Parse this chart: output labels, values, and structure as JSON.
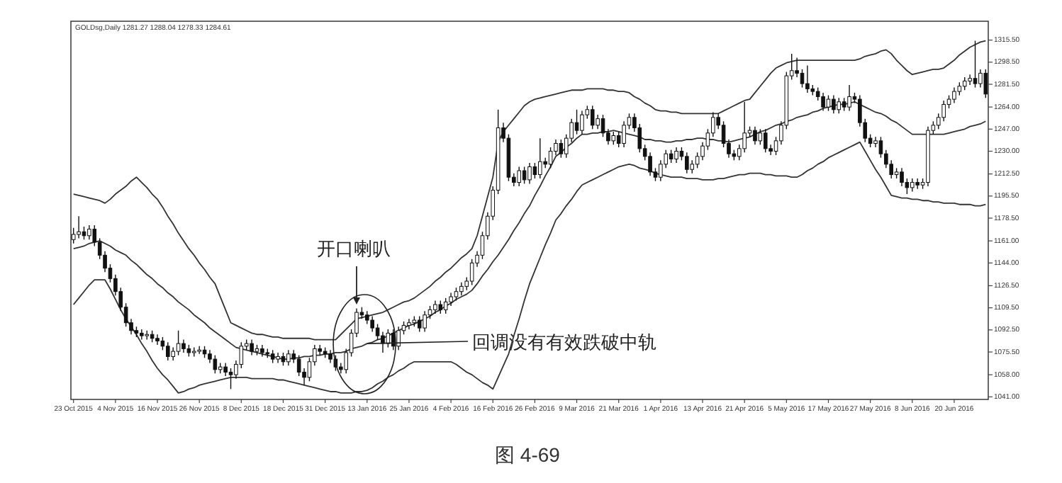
{
  "chart_data": {
    "type": "candlestick",
    "title": "GOLDsg,Daily 1281.27 1288.04 1278.33 1284.61",
    "categories": [
      "23 Oct 2015",
      null,
      null,
      null,
      null,
      null,
      null,
      null,
      "4 Nov 2015",
      null,
      null,
      null,
      null,
      null,
      null,
      null,
      "16 Nov 2015",
      null,
      null,
      null,
      null,
      null,
      null,
      null,
      "26 Nov 2015",
      null,
      null,
      null,
      null,
      null,
      null,
      null,
      "8 Dec 2015",
      null,
      null,
      null,
      null,
      null,
      null,
      null,
      "18 Dec 2015",
      null,
      null,
      null,
      null,
      null,
      null,
      null,
      "31 Dec 2015",
      null,
      null,
      null,
      null,
      null,
      null,
      null,
      "13 Jan 2016",
      null,
      null,
      null,
      null,
      null,
      null,
      null,
      "25 Jan 2016",
      null,
      null,
      null,
      null,
      null,
      null,
      null,
      "4 Feb 2016",
      null,
      null,
      null,
      null,
      null,
      null,
      null,
      "16 Feb 2016",
      null,
      null,
      null,
      null,
      null,
      null,
      null,
      "26 Feb 2016",
      null,
      null,
      null,
      null,
      null,
      null,
      null,
      "9 Mar 2016",
      null,
      null,
      null,
      null,
      null,
      null,
      null,
      "21 Mar 2016",
      null,
      null,
      null,
      null,
      null,
      null,
      null,
      "1 Apr 2016",
      null,
      null,
      null,
      null,
      null,
      null,
      null,
      "13 Apr 2016",
      null,
      null,
      null,
      null,
      null,
      null,
      null,
      "21 Apr 2016",
      null,
      null,
      null,
      null,
      null,
      null,
      null,
      "5 May 2016",
      null,
      null,
      null,
      null,
      null,
      null,
      null,
      "17 May 2016",
      null,
      null,
      null,
      null,
      null,
      null,
      null,
      "27 May 2016",
      null,
      null,
      null,
      null,
      null,
      null,
      null,
      "8 Jun 2016",
      null,
      null,
      null,
      null,
      null,
      null,
      null,
      "20 Jun 2016",
      null,
      null,
      null,
      null,
      null,
      null
    ],
    "ohlc": [
      [
        1162,
        1171,
        1159,
        1166
      ],
      [
        1166,
        1180,
        1163,
        1168
      ],
      [
        1168,
        1172,
        1162,
        1165
      ],
      [
        1165,
        1173,
        1162,
        1170
      ],
      [
        1170,
        1173,
        1157,
        1160
      ],
      [
        1160,
        1163,
        1147,
        1150
      ],
      [
        1150,
        1153,
        1137,
        1140
      ],
      [
        1140,
        1143,
        1129,
        1132
      ],
      [
        1132,
        1135,
        1119,
        1122
      ],
      [
        1122,
        1125,
        1107,
        1110
      ],
      [
        1110,
        1113,
        1095,
        1098
      ],
      [
        1098,
        1101,
        1089,
        1092
      ],
      [
        1092,
        1095,
        1087,
        1090
      ],
      [
        1090,
        1093,
        1085,
        1088
      ],
      [
        1088,
        1092,
        1085,
        1089
      ],
      [
        1089,
        1092,
        1083,
        1086
      ],
      [
        1086,
        1089,
        1081,
        1084
      ],
      [
        1084,
        1087,
        1077,
        1080
      ],
      [
        1080,
        1083,
        1069,
        1072
      ],
      [
        1072,
        1079,
        1069,
        1076
      ],
      [
        1076,
        1092,
        1073,
        1082
      ],
      [
        1082,
        1085,
        1075,
        1078
      ],
      [
        1078,
        1081,
        1072,
        1075
      ],
      [
        1075,
        1079,
        1072,
        1076
      ],
      [
        1076,
        1080,
        1074,
        1077
      ],
      [
        1077,
        1080,
        1071,
        1074
      ],
      [
        1074,
        1077,
        1067,
        1070
      ],
      [
        1070,
        1073,
        1059,
        1062
      ],
      [
        1062,
        1067,
        1059,
        1064
      ],
      [
        1064,
        1067,
        1057,
        1060
      ],
      [
        1060,
        1063,
        1047,
        1058
      ],
      [
        1058,
        1069,
        1055,
        1066
      ],
      [
        1066,
        1083,
        1063,
        1080
      ],
      [
        1080,
        1085,
        1077,
        1082
      ],
      [
        1082,
        1085,
        1073,
        1076
      ],
      [
        1076,
        1081,
        1073,
        1078
      ],
      [
        1078,
        1081,
        1072,
        1075
      ],
      [
        1075,
        1078,
        1071,
        1074
      ],
      [
        1074,
        1077,
        1067,
        1070
      ],
      [
        1070,
        1075,
        1067,
        1072
      ],
      [
        1072,
        1075,
        1065,
        1068
      ],
      [
        1068,
        1077,
        1065,
        1074
      ],
      [
        1074,
        1077,
        1067,
        1070
      ],
      [
        1070,
        1073,
        1057,
        1060
      ],
      [
        1060,
        1063,
        1050,
        1056
      ],
      [
        1056,
        1071,
        1053,
        1068
      ],
      [
        1068,
        1081,
        1065,
        1078
      ],
      [
        1078,
        1081,
        1073,
        1076
      ],
      [
        1076,
        1079,
        1071,
        1074
      ],
      [
        1074,
        1077,
        1067,
        1070
      ],
      [
        1070,
        1073,
        1061,
        1064
      ],
      [
        1064,
        1067,
        1059,
        1062
      ],
      [
        1062,
        1078,
        1059,
        1075
      ],
      [
        1075,
        1093,
        1072,
        1090
      ],
      [
        1090,
        1109,
        1087,
        1106
      ],
      [
        1106,
        1110,
        1101,
        1104
      ],
      [
        1104,
        1107,
        1097,
        1100
      ],
      [
        1100,
        1103,
        1091,
        1094
      ],
      [
        1094,
        1097,
        1085,
        1088
      ],
      [
        1088,
        1091,
        1075,
        1082
      ],
      [
        1082,
        1093,
        1079,
        1090
      ],
      [
        1090,
        1093,
        1077,
        1080
      ],
      [
        1080,
        1095,
        1077,
        1092
      ],
      [
        1092,
        1099,
        1089,
        1096
      ],
      [
        1096,
        1101,
        1093,
        1098
      ],
      [
        1098,
        1103,
        1095,
        1100
      ],
      [
        1100,
        1103,
        1091,
        1094
      ],
      [
        1094,
        1107,
        1091,
        1104
      ],
      [
        1104,
        1111,
        1101,
        1108
      ],
      [
        1108,
        1115,
        1105,
        1112
      ],
      [
        1112,
        1115,
        1105,
        1108
      ],
      [
        1108,
        1117,
        1105,
        1114
      ],
      [
        1114,
        1121,
        1111,
        1118
      ],
      [
        1118,
        1125,
        1115,
        1122
      ],
      [
        1122,
        1129,
        1119,
        1126
      ],
      [
        1126,
        1133,
        1123,
        1130
      ],
      [
        1130,
        1147,
        1127,
        1144
      ],
      [
        1144,
        1153,
        1141,
        1150
      ],
      [
        1150,
        1168,
        1147,
        1165
      ],
      [
        1165,
        1183,
        1162,
        1180
      ],
      [
        1180,
        1203,
        1177,
        1200
      ],
      [
        1200,
        1262,
        1197,
        1248
      ],
      [
        1248,
        1252,
        1237,
        1240
      ],
      [
        1240,
        1243,
        1207,
        1210
      ],
      [
        1210,
        1213,
        1203,
        1206
      ],
      [
        1206,
        1218,
        1203,
        1215
      ],
      [
        1215,
        1218,
        1205,
        1208
      ],
      [
        1208,
        1221,
        1205,
        1218
      ],
      [
        1218,
        1221,
        1209,
        1212
      ],
      [
        1212,
        1240,
        1209,
        1222
      ],
      [
        1222,
        1225,
        1217,
        1220
      ],
      [
        1220,
        1233,
        1217,
        1230
      ],
      [
        1230,
        1239,
        1227,
        1236
      ],
      [
        1236,
        1239,
        1225,
        1228
      ],
      [
        1228,
        1243,
        1225,
        1240
      ],
      [
        1240,
        1255,
        1237,
        1252
      ],
      [
        1252,
        1262,
        1243,
        1246
      ],
      [
        1246,
        1261,
        1243,
        1258
      ],
      [
        1258,
        1265,
        1255,
        1262
      ],
      [
        1262,
        1265,
        1247,
        1250
      ],
      [
        1250,
        1258,
        1247,
        1255
      ],
      [
        1255,
        1258,
        1241,
        1244
      ],
      [
        1244,
        1247,
        1235,
        1238
      ],
      [
        1238,
        1245,
        1235,
        1242
      ],
      [
        1242,
        1245,
        1233,
        1236
      ],
      [
        1236,
        1253,
        1233,
        1250
      ],
      [
        1250,
        1259,
        1247,
        1256
      ],
      [
        1256,
        1259,
        1245,
        1248
      ],
      [
        1248,
        1251,
        1229,
        1232
      ],
      [
        1232,
        1235,
        1223,
        1226
      ],
      [
        1226,
        1229,
        1211,
        1214
      ],
      [
        1214,
        1217,
        1207,
        1210
      ],
      [
        1210,
        1223,
        1207,
        1220
      ],
      [
        1220,
        1231,
        1217,
        1228
      ],
      [
        1228,
        1231,
        1221,
        1224
      ],
      [
        1224,
        1233,
        1221,
        1230
      ],
      [
        1230,
        1233,
        1223,
        1226
      ],
      [
        1226,
        1229,
        1213,
        1216
      ],
      [
        1216,
        1223,
        1213,
        1220
      ],
      [
        1220,
        1229,
        1217,
        1226
      ],
      [
        1226,
        1237,
        1223,
        1234
      ],
      [
        1234,
        1247,
        1231,
        1244
      ],
      [
        1244,
        1260,
        1241,
        1256
      ],
      [
        1256,
        1259,
        1247,
        1250
      ],
      [
        1250,
        1253,
        1233,
        1236
      ],
      [
        1236,
        1239,
        1225,
        1228
      ],
      [
        1228,
        1231,
        1223,
        1226
      ],
      [
        1226,
        1235,
        1223,
        1232
      ],
      [
        1232,
        1268,
        1229,
        1244
      ],
      [
        1244,
        1249,
        1241,
        1246
      ],
      [
        1246,
        1249,
        1235,
        1238
      ],
      [
        1238,
        1247,
        1235,
        1244
      ],
      [
        1244,
        1247,
        1229,
        1232
      ],
      [
        1232,
        1235,
        1227,
        1230
      ],
      [
        1230,
        1241,
        1227,
        1238
      ],
      [
        1238,
        1253,
        1235,
        1250
      ],
      [
        1250,
        1291,
        1247,
        1288
      ],
      [
        1288,
        1305,
        1285,
        1292
      ],
      [
        1292,
        1302,
        1287,
        1290
      ],
      [
        1290,
        1293,
        1279,
        1282
      ],
      [
        1282,
        1296,
        1275,
        1278
      ],
      [
        1278,
        1281,
        1273,
        1276
      ],
      [
        1276,
        1279,
        1269,
        1272
      ],
      [
        1272,
        1275,
        1261,
        1264
      ],
      [
        1264,
        1273,
        1261,
        1270
      ],
      [
        1270,
        1273,
        1259,
        1262
      ],
      [
        1262,
        1271,
        1259,
        1268
      ],
      [
        1268,
        1271,
        1261,
        1264
      ],
      [
        1264,
        1281,
        1261,
        1272
      ],
      [
        1272,
        1275,
        1267,
        1270
      ],
      [
        1270,
        1273,
        1249,
        1252
      ],
      [
        1252,
        1255,
        1237,
        1240
      ],
      [
        1240,
        1243,
        1233,
        1236
      ],
      [
        1236,
        1241,
        1233,
        1238
      ],
      [
        1238,
        1241,
        1225,
        1228
      ],
      [
        1228,
        1231,
        1217,
        1220
      ],
      [
        1220,
        1223,
        1209,
        1212
      ],
      [
        1212,
        1217,
        1209,
        1214
      ],
      [
        1214,
        1217,
        1203,
        1206
      ],
      [
        1206,
        1209,
        1197,
        1202
      ],
      [
        1202,
        1209,
        1199,
        1206
      ],
      [
        1206,
        1209,
        1201,
        1204
      ],
      [
        1204,
        1209,
        1201,
        1206
      ],
      [
        1206,
        1249,
        1203,
        1246
      ],
      [
        1246,
        1253,
        1243,
        1250
      ],
      [
        1250,
        1259,
        1247,
        1256
      ],
      [
        1256,
        1269,
        1253,
        1266
      ],
      [
        1266,
        1273,
        1263,
        1270
      ],
      [
        1270,
        1279,
        1267,
        1276
      ],
      [
        1276,
        1283,
        1273,
        1280
      ],
      [
        1280,
        1287,
        1277,
        1284
      ],
      [
        1284,
        1289,
        1281,
        1286
      ],
      [
        1286,
        1315,
        1279,
        1282
      ],
      [
        1282,
        1293,
        1279,
        1290
      ],
      [
        1290,
        1293,
        1271,
        1274
      ]
    ],
    "series": [
      {
        "type": "line",
        "color": "#333333",
        "values": [
          1197,
          1196,
          1195,
          1194,
          1193,
          1192,
          1190,
          1193,
          1197,
          1200,
          1203,
          1207,
          1210,
          1206,
          1202,
          1197,
          1193,
          1187,
          1180,
          1174,
          1167,
          1161,
          1155,
          1150,
          1144,
          1139,
          1133,
          1128,
          1118,
          1108,
          1098,
          1096,
          1094,
          1092,
          1090,
          1089,
          1089,
          1088,
          1087,
          1087,
          1086,
          1086,
          1086,
          1086,
          1086,
          1086,
          1085,
          1085,
          1085,
          1085,
          1085,
          1089,
          1093,
          1097,
          1101,
          1102,
          1103,
          1104,
          1105,
          1106,
          1108,
          1110,
          1112,
          1114,
          1115,
          1117,
          1120,
          1123,
          1126,
          1130,
          1133,
          1137,
          1140,
          1144,
          1148,
          1151,
          1155,
          1165,
          1180,
          1195,
          1210,
          1237,
          1245,
          1250,
          1255,
          1260,
          1265,
          1268,
          1270,
          1271,
          1272,
          1273,
          1274,
          1275,
          1276,
          1277,
          1277,
          1277,
          1278,
          1278,
          1278,
          1278,
          1277,
          1277,
          1276,
          1276,
          1275,
          1272,
          1270,
          1267,
          1265,
          1262,
          1261,
          1261,
          1260,
          1260,
          1259,
          1259,
          1259,
          1259,
          1259,
          1259,
          1259,
          1259,
          1261,
          1263,
          1265,
          1267,
          1269,
          1270,
          1275,
          1280,
          1285,
          1290,
          1294,
          1296,
          1298,
          1299,
          1300,
          1300,
          1300,
          1300,
          1300,
          1300,
          1300,
          1300,
          1300,
          1300,
          1300,
          1300,
          1301,
          1303,
          1304,
          1305,
          1307,
          1308,
          1305,
          1300,
          1296,
          1292,
          1289,
          1290,
          1291,
          1292,
          1293,
          1293,
          1294,
          1297,
          1300,
          1304,
          1307,
          1310,
          1312,
          1314,
          1315
        ]
      },
      {
        "type": "line",
        "color": "#333333",
        "values": [
          1155,
          1156,
          1157,
          1159,
          1160,
          1161,
          1159,
          1157,
          1154,
          1152,
          1150,
          1146,
          1143,
          1139,
          1135,
          1132,
          1128,
          1125,
          1121,
          1118,
          1114,
          1111,
          1108,
          1104,
          1101,
          1098,
          1094,
          1091,
          1088,
          1085,
          1082,
          1079,
          1078,
          1077,
          1076,
          1075,
          1074,
          1073,
          1072,
          1071,
          1070,
          1070,
          1071,
          1071,
          1072,
          1072,
          1073,
          1073,
          1074,
          1074,
          1075,
          1075,
          1076,
          1078,
          1079,
          1080,
          1082,
          1083,
          1085,
          1086,
          1088,
          1090,
          1092,
          1094,
          1096,
          1097,
          1099,
          1101,
          1103,
          1106,
          1108,
          1111,
          1113,
          1116,
          1118,
          1120,
          1123,
          1128,
          1134,
          1139,
          1145,
          1150,
          1156,
          1162,
          1169,
          1175,
          1182,
          1188,
          1196,
          1203,
          1211,
          1218,
          1226,
          1229,
          1233,
          1236,
          1240,
          1243,
          1243,
          1244,
          1244,
          1245,
          1245,
          1246,
          1245,
          1244,
          1243,
          1242,
          1241,
          1239,
          1239,
          1238,
          1238,
          1237,
          1237,
          1238,
          1238,
          1239,
          1239,
          1240,
          1240,
          1239,
          1239,
          1238,
          1238,
          1237,
          1238,
          1239,
          1240,
          1241,
          1243,
          1245,
          1246,
          1248,
          1250,
          1251,
          1253,
          1254,
          1256,
          1257,
          1258,
          1260,
          1261,
          1263,
          1264,
          1265,
          1266,
          1266,
          1267,
          1268,
          1266,
          1264,
          1262,
          1260,
          1259,
          1257,
          1254,
          1252,
          1249,
          1246,
          1243,
          1243,
          1243,
          1243,
          1243,
          1243,
          1243,
          1244,
          1245,
          1246,
          1247,
          1249,
          1250,
          1251,
          1253
        ]
      },
      {
        "type": "line",
        "color": "#333333",
        "values": [
          1112,
          1117,
          1122,
          1127,
          1131,
          1131,
          1131,
          1124,
          1116,
          1108,
          1101,
          1095,
          1089,
          1082,
          1076,
          1069,
          1063,
          1058,
          1054,
          1049,
          1044,
          1045,
          1047,
          1048,
          1050,
          1051,
          1052,
          1053,
          1054,
          1055,
          1056,
          1056,
          1056,
          1056,
          1055,
          1055,
          1055,
          1055,
          1055,
          1054,
          1054,
          1053,
          1052,
          1051,
          1050,
          1049,
          1048,
          1047,
          1046,
          1045,
          1045,
          1044,
          1044,
          1044,
          1045,
          1045,
          1046,
          1048,
          1051,
          1053,
          1056,
          1058,
          1061,
          1063,
          1066,
          1068,
          1068,
          1068,
          1068,
          1068,
          1068,
          1068,
          1068,
          1066,
          1063,
          1060,
          1058,
          1055,
          1052,
          1050,
          1047,
          1056,
          1065,
          1074,
          1088,
          1101,
          1115,
          1128,
          1138,
          1148,
          1158,
          1167,
          1177,
          1182,
          1188,
          1193,
          1199,
          1204,
          1206,
          1208,
          1210,
          1212,
          1214,
          1216,
          1218,
          1219,
          1220,
          1219,
          1217,
          1216,
          1215,
          1213,
          1212,
          1211,
          1210,
          1210,
          1210,
          1209,
          1209,
          1209,
          1208,
          1208,
          1208,
          1209,
          1209,
          1210,
          1211,
          1212,
          1212,
          1213,
          1213,
          1213,
          1212,
          1212,
          1211,
          1211,
          1211,
          1210,
          1210,
          1212,
          1215,
          1217,
          1220,
          1222,
          1225,
          1227,
          1229,
          1231,
          1233,
          1235,
          1237,
          1230,
          1223,
          1216,
          1210,
          1203,
          1196,
          1195,
          1194,
          1194,
          1193,
          1193,
          1192,
          1192,
          1191,
          1191,
          1190,
          1190,
          1190,
          1189,
          1189,
          1189,
          1188,
          1188,
          1189
        ]
      }
    ],
    "ylim": [
      1039,
      1330
    ],
    "yticks": [
      {
        "value": 1315.5,
        "label": "1315.50"
      },
      {
        "value": 1298.5,
        "label": "1298.50"
      },
      {
        "value": 1281.5,
        "label": "1281.50"
      },
      {
        "value": 1264,
        "label": "1264.00"
      },
      {
        "value": 1247,
        "label": "1247.00"
      },
      {
        "value": 1230,
        "label": "1230.00"
      },
      {
        "value": 1212.5,
        "label": "1212.50"
      },
      {
        "value": 1195.5,
        "label": "1195.50"
      },
      {
        "value": 1178.5,
        "label": "1178.50"
      },
      {
        "value": 1161,
        "label": "1161.00"
      },
      {
        "value": 1144,
        "label": "1144.00"
      },
      {
        "value": 1126.5,
        "label": "1126.50"
      },
      {
        "value": 1109.5,
        "label": "1109.50"
      },
      {
        "value": 1092.5,
        "label": "1092.50"
      },
      {
        "value": 1075.5,
        "label": "1075.50"
      },
      {
        "value": 1058,
        "label": "1058.00"
      },
      {
        "value": 1041,
        "label": "1041.00"
      }
    ],
    "annotations": [
      {
        "text": "开口喇叭",
        "y": 1112
      },
      {
        "text": "回调没有有效跌破中轨",
        "x": "13 Jan 2016",
        "y": 1082
      },
      "图 4-69"
    ]
  }
}
